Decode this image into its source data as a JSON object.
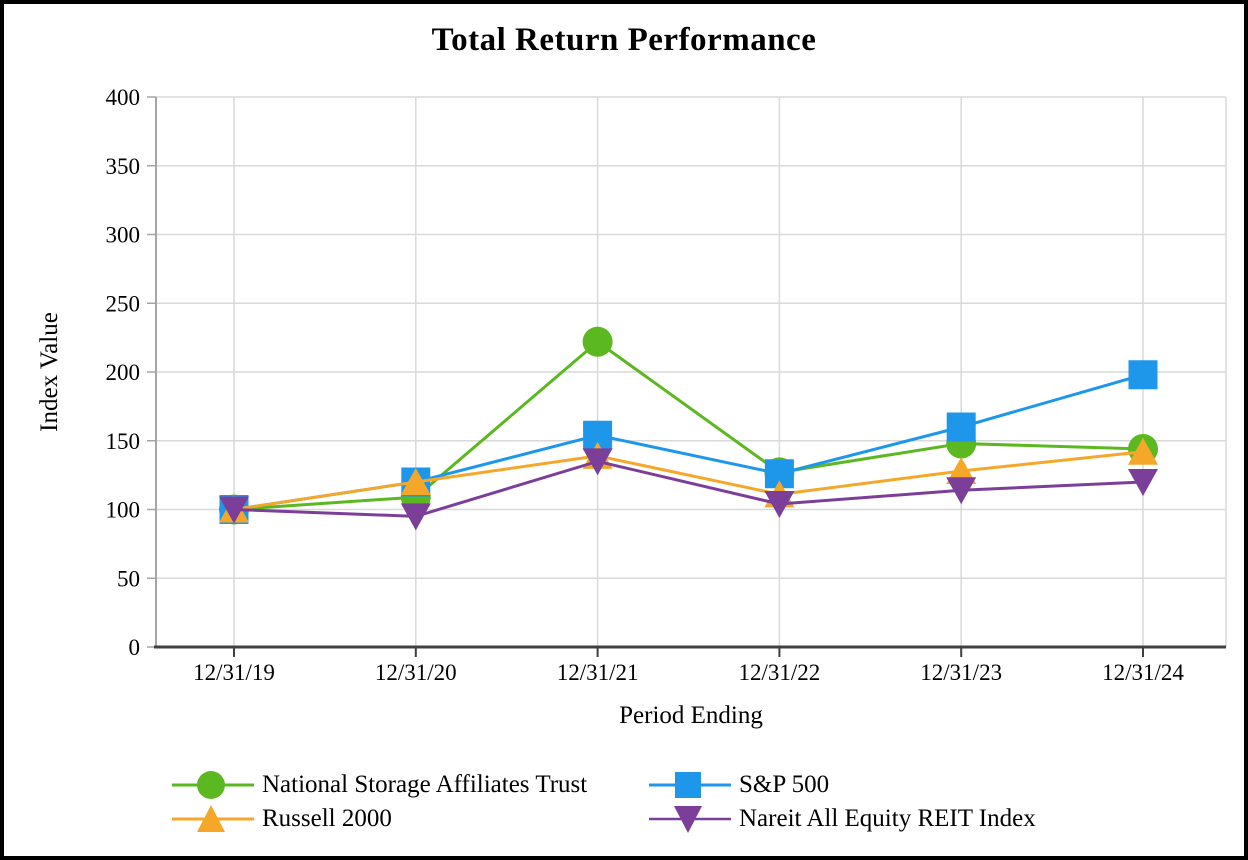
{
  "chart_data": {
    "type": "line",
    "title": "Total Return Performance",
    "xlabel": "Period Ending",
    "ylabel": "Index Value",
    "ylim": [
      0,
      400
    ],
    "yticks": [
      0,
      50,
      100,
      150,
      200,
      250,
      300,
      350,
      400
    ],
    "grid": true,
    "legend_position": "bottom",
    "categories": [
      "12/31/19",
      "12/31/20",
      "12/31/21",
      "12/31/22",
      "12/31/23",
      "12/31/24"
    ],
    "series": [
      {
        "name": "National Storage Affiliates Trust",
        "marker": "circle",
        "color": "#5CB821",
        "values": [
          100,
          109,
          222,
          127,
          148,
          144
        ]
      },
      {
        "name": "S&P 500",
        "marker": "square",
        "color": "#1E97EB",
        "values": [
          100,
          120,
          154,
          126,
          160,
          198
        ]
      },
      {
        "name": "Russell 2000",
        "marker": "triangle-up",
        "color": "#F5A72A",
        "values": [
          100,
          120,
          139,
          111,
          128,
          142
        ]
      },
      {
        "name": "Nareit All Equity REIT Index",
        "marker": "triangle-down",
        "color": "#7B3F99",
        "values": [
          100,
          95,
          135,
          104,
          114,
          120
        ]
      }
    ],
    "style_colors": {
      "gridline": "#D9D9D9",
      "y_axis": "#A6A6A6",
      "x_axis": "#404040",
      "text": "#000000"
    }
  }
}
